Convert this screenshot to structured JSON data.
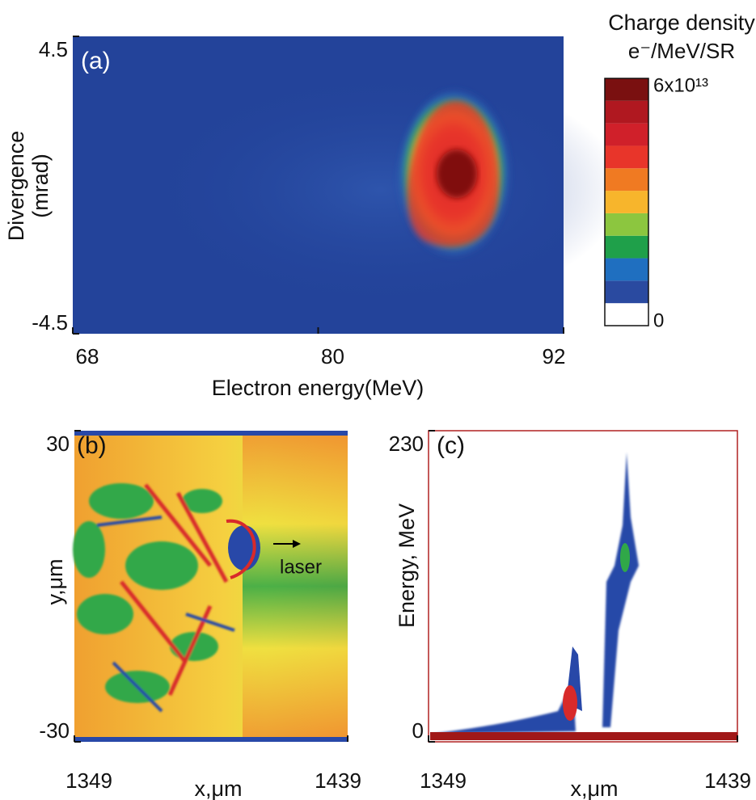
{
  "chart_data": [
    {
      "type": "heatmap",
      "panel_label": "(a)",
      "xlabel": "Electron energy(MeV)",
      "ylabel": [
        "Divergence",
        "(mrad)"
      ],
      "xlim": [
        68,
        92
      ],
      "xticks": [
        68,
        80,
        92
      ],
      "ylim": [
        -4.5,
        4.5
      ],
      "yticks": [
        -4.5,
        4.5
      ],
      "colorbar": {
        "title": "Charge density",
        "label": "e⁻/MeV/SR",
        "lim": [
          0,
          60000000000000
        ],
        "ticks": [
          0,
          {
            "value": 60000000000000,
            "label": "6x10¹³"
          }
        ],
        "colors": [
          "#ffffff",
          "#2a4aa0",
          "#1f6fc0",
          "#1fa04a",
          "#8cc63f",
          "#f7b52c",
          "#f07a22",
          "#e8352a",
          "#d0202a",
          "#b01820",
          "#7a1010"
        ]
      }
    },
    {
      "type": "heatmap",
      "panel_label": "(b)",
      "annotation": "laser",
      "xlabel": "x,μm",
      "ylabel": "y,μm",
      "xlim": [
        1349,
        1439
      ],
      "xticks": [
        1349,
        1439
      ],
      "ylim": [
        -30,
        30
      ],
      "yticks": [
        -30,
        30
      ]
    },
    {
      "type": "heatmap",
      "panel_label": "(c)",
      "xlabel": "x,μm",
      "ylabel": "Energy, MeV",
      "xlim": [
        1349,
        1439
      ],
      "xticks": [
        1349,
        1439
      ],
      "ylim": [
        0,
        230
      ],
      "yticks": [
        0,
        230
      ]
    }
  ]
}
